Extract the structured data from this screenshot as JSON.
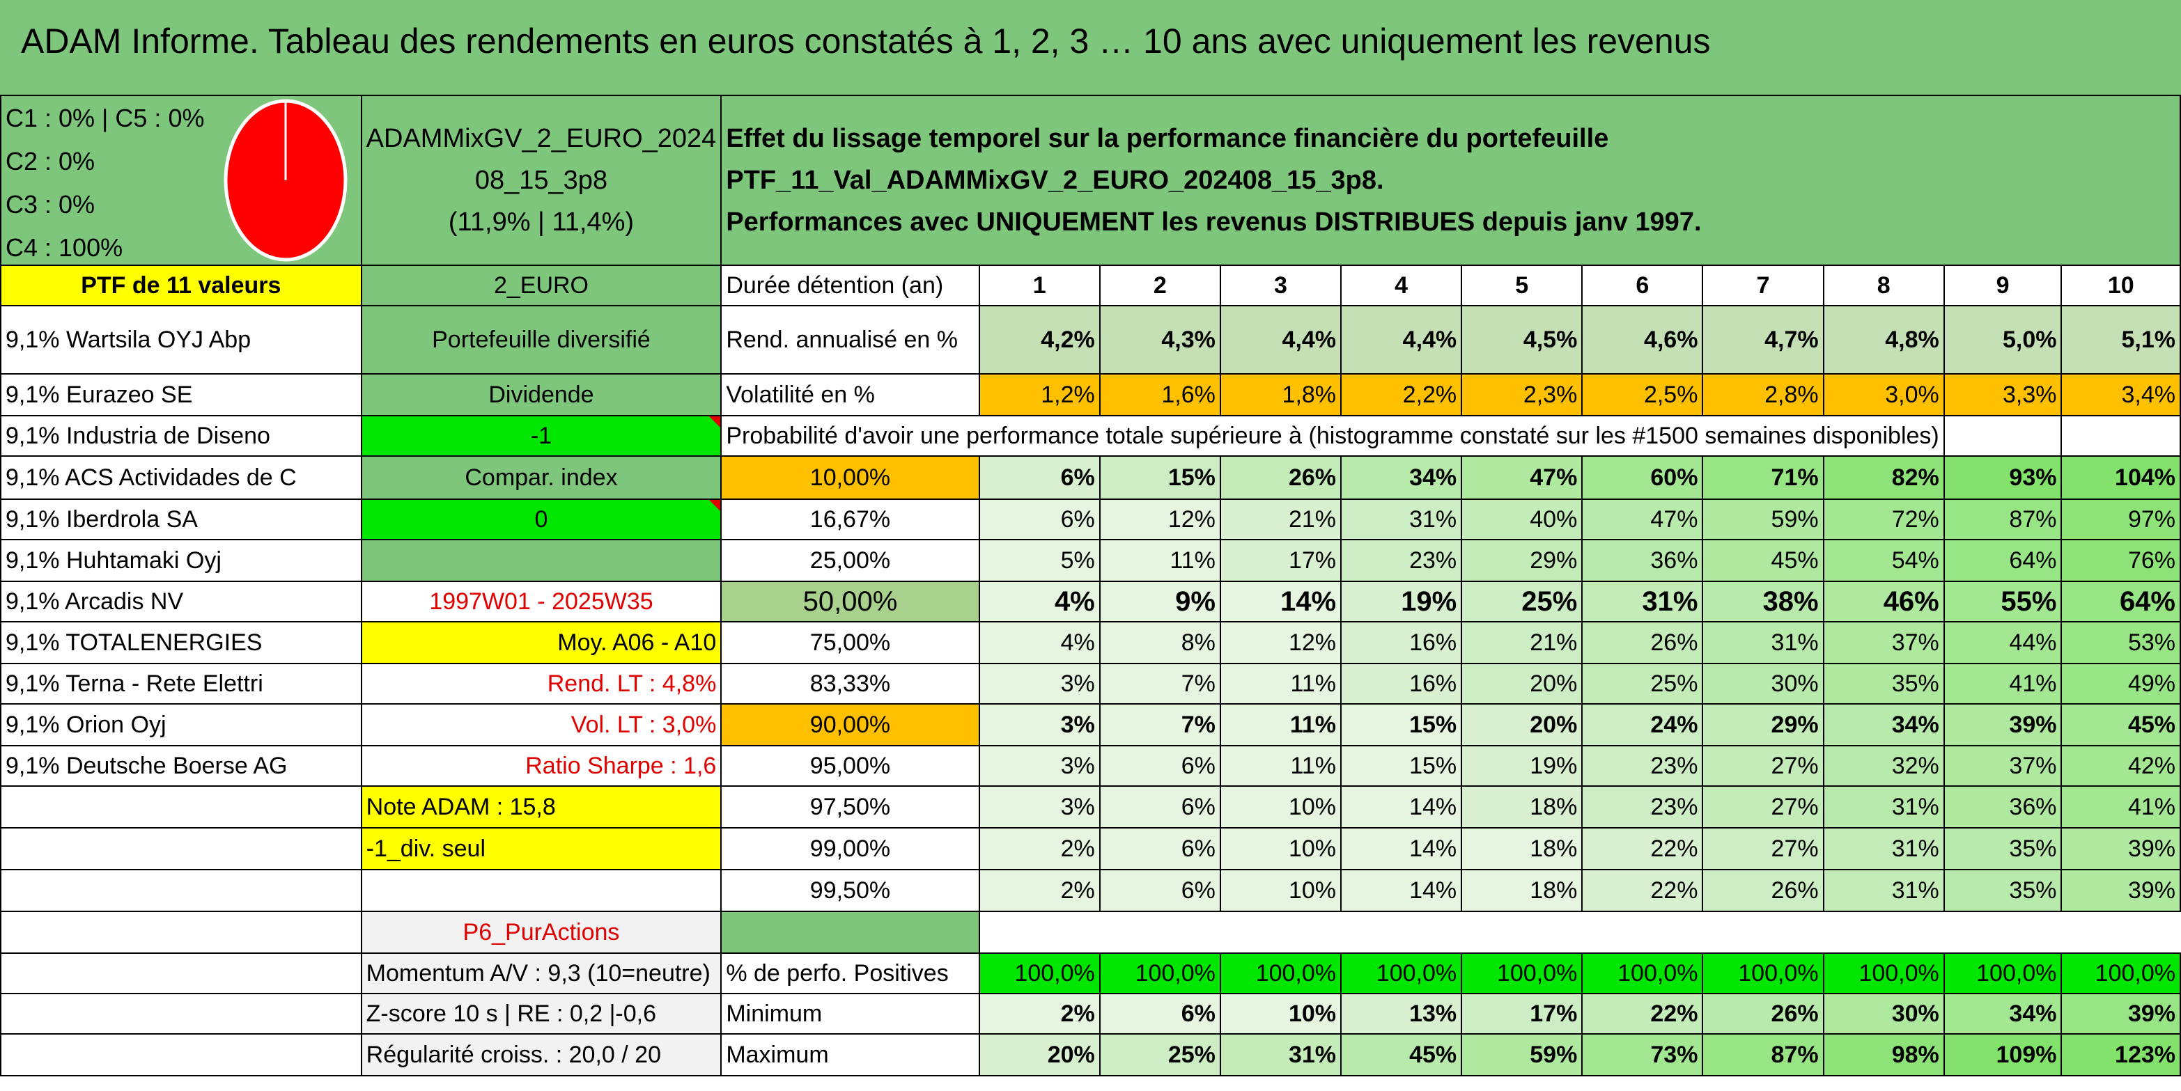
{
  "title": "ADAM Informe. Tableau des rendements en euros constatés à 1, 2, 3 … 10 ans avec uniquement les revenus",
  "legend": {
    "c1c5": "C1 : 0% | C5 : 0%",
    "c2": "C2 : 0%",
    "c3": "C3 : 0%",
    "c4": "C4 : 100%"
  },
  "portfolio": {
    "name_l1": "ADAMMixGV_2_EURO_2024",
    "name_l2": "08_15_3p8",
    "name_l3": "(11,9% | 11,4%)"
  },
  "header_text": {
    "line1": "Effet du lissage temporel sur la performance financière du portefeuille PTF_11_Val_ADAMMixGV_2_EURO_202408_15_3p8.",
    "line2": "Performances avec UNIQUEMENT les revenus DISTRIBUES depuis janv 1997."
  },
  "left": {
    "ptf_label": "PTF de 11 valeurs",
    "holdings": [
      "9,1% Wartsila OYJ Abp",
      "9,1% Eurazeo SE",
      "9,1% Industria de Diseno",
      "9,1% ACS Actividades de C",
      "9,1% Iberdrola SA",
      "9,1% Huhtamaki Oyj",
      "9,1% Arcadis NV",
      "9,1% TOTALENERGIES",
      "9,1% Terna - Rete Elettri",
      "9,1% Orion Oyj",
      "9,1% Deutsche Boerse AG"
    ]
  },
  "mid": {
    "currency": "2_EURO",
    "type": "Portefeuille diversifié",
    "dividend": "Dividende",
    "div_val": "-1",
    "compar": "Compar. index",
    "compar_val": "0",
    "period": "1997W01 - 2025W35",
    "moy": "Moy. A06 - A10",
    "rend_lt": "Rend. LT : 4,8%",
    "vol_lt": "Vol. LT : 3,0%",
    "sharpe": "Ratio Sharpe : 1,6",
    "note": "Note ADAM : 15,8",
    "div_seul": "-1_div. seul",
    "p6": "P6_PurActions",
    "momentum": "Momentum A/V : 9,3 (10=neutre)",
    "zscore": "Z-score 10 s | RE : 0,2 |-0,6",
    "regularite": "Régularité croiss. : 20,0 / 20"
  },
  "table": {
    "duree_label": "Durée détention (an)",
    "years": [
      "1",
      "2",
      "3",
      "4",
      "5",
      "6",
      "7",
      "8",
      "9",
      "10"
    ],
    "rend_label": "Rend. annualisé en %",
    "rend": [
      "4,2%",
      "4,3%",
      "4,4%",
      "4,4%",
      "4,5%",
      "4,6%",
      "4,7%",
      "4,8%",
      "5,0%",
      "5,1%"
    ],
    "vol_label": "Volatilité en %",
    "vol": [
      "1,2%",
      "1,6%",
      "1,8%",
      "2,2%",
      "2,3%",
      "2,5%",
      "2,8%",
      "3,0%",
      "3,3%",
      "3,4%"
    ],
    "prob_label": "Probabilité d'avoir une performance totale supérieure à (histogramme constaté sur les #1500 semaines disponibles)",
    "prob_rows": [
      {
        "p": "10,00%",
        "v": [
          "6%",
          "15%",
          "26%",
          "34%",
          "47%",
          "60%",
          "71%",
          "82%",
          "93%",
          "104%"
        ]
      },
      {
        "p": "16,67%",
        "v": [
          "6%",
          "12%",
          "21%",
          "31%",
          "40%",
          "47%",
          "59%",
          "72%",
          "87%",
          "97%"
        ]
      },
      {
        "p": "25,00%",
        "v": [
          "5%",
          "11%",
          "17%",
          "23%",
          "29%",
          "36%",
          "45%",
          "54%",
          "64%",
          "76%"
        ]
      },
      {
        "p": "50,00%",
        "v": [
          "4%",
          "9%",
          "14%",
          "19%",
          "25%",
          "31%",
          "38%",
          "46%",
          "55%",
          "64%"
        ]
      },
      {
        "p": "75,00%",
        "v": [
          "4%",
          "8%",
          "12%",
          "16%",
          "21%",
          "26%",
          "31%",
          "37%",
          "44%",
          "53%"
        ]
      },
      {
        "p": "83,33%",
        "v": [
          "3%",
          "7%",
          "11%",
          "16%",
          "20%",
          "25%",
          "30%",
          "35%",
          "41%",
          "49%"
        ]
      },
      {
        "p": "90,00%",
        "v": [
          "3%",
          "7%",
          "11%",
          "15%",
          "20%",
          "24%",
          "29%",
          "34%",
          "39%",
          "45%"
        ]
      },
      {
        "p": "95,00%",
        "v": [
          "3%",
          "6%",
          "11%",
          "15%",
          "19%",
          "23%",
          "27%",
          "32%",
          "37%",
          "42%"
        ]
      },
      {
        "p": "97,50%",
        "v": [
          "3%",
          "6%",
          "10%",
          "14%",
          "18%",
          "23%",
          "27%",
          "31%",
          "36%",
          "41%"
        ]
      },
      {
        "p": "99,00%",
        "v": [
          "2%",
          "6%",
          "10%",
          "14%",
          "18%",
          "22%",
          "27%",
          "31%",
          "35%",
          "39%"
        ]
      },
      {
        "p": "99,50%",
        "v": [
          "2%",
          "6%",
          "10%",
          "14%",
          "18%",
          "22%",
          "26%",
          "31%",
          "35%",
          "39%"
        ]
      }
    ],
    "pos_label": "% de perfo. Positives",
    "pos": [
      "100,0%",
      "100,0%",
      "100,0%",
      "100,0%",
      "100,0%",
      "100,0%",
      "100,0%",
      "100,0%",
      "100,0%",
      "100,0%"
    ],
    "min_label": "Minimum",
    "min": [
      "2%",
      "6%",
      "10%",
      "13%",
      "17%",
      "22%",
      "26%",
      "30%",
      "34%",
      "39%"
    ],
    "max_label": "Maximum",
    "max": [
      "20%",
      "25%",
      "31%",
      "45%",
      "59%",
      "73%",
      "87%",
      "98%",
      "109%",
      "123%"
    ]
  },
  "colors": {
    "green": "#7ec67c",
    "yellow": "#ffff00",
    "bright_green": "#00e600",
    "orange": "#ffc000",
    "pie": "#ff0000"
  }
}
